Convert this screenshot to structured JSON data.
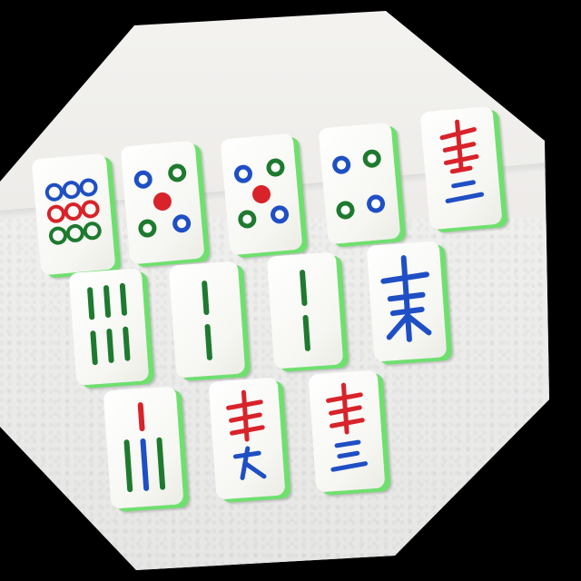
{
  "scene": {
    "description_name": "mahjong-tiles-photo",
    "background_color": "#000000",
    "tile_face_color": "#ffffff",
    "tile_back_color": "#6ee06e",
    "ink_colors": {
      "red": "#d8232a",
      "blue": "#1f4fc4",
      "green": "#1d7a2e"
    }
  },
  "tiles": [
    {
      "id": "circles-9",
      "suit": "circles",
      "rank": 9
    },
    {
      "id": "circles-5",
      "suit": "circles",
      "rank": 5
    },
    {
      "id": "circles-5b",
      "suit": "circles",
      "rank": 5
    },
    {
      "id": "circles-4",
      "suit": "circles",
      "rank": 4
    },
    {
      "id": "characters-2",
      "suit": "characters",
      "rank": 2
    },
    {
      "id": "bamboo-6",
      "suit": "bamboo",
      "rank": 6
    },
    {
      "id": "bamboo-2a",
      "suit": "bamboo",
      "rank": 2
    },
    {
      "id": "bamboo-2b",
      "suit": "bamboo",
      "rank": 2
    },
    {
      "id": "wind-east",
      "suit": "wind",
      "rank": "east"
    },
    {
      "id": "bamboo-7",
      "suit": "bamboo",
      "rank": 7
    },
    {
      "id": "characters-9",
      "suit": "characters",
      "rank": 9
    },
    {
      "id": "characters-3",
      "suit": "characters",
      "rank": 3
    }
  ]
}
